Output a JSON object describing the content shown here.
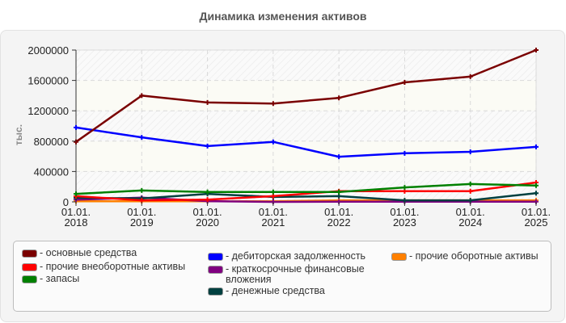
{
  "chart_data": {
    "type": "line",
    "title": "Динамика изменения активов",
    "xlabel": "",
    "ylabel": "тыс.",
    "ylim": [
      0,
      2000000
    ],
    "yticks": [
      0,
      400000,
      800000,
      1200000,
      1600000,
      2000000
    ],
    "ytick_labels": [
      "0",
      "400000",
      "800000",
      "1200000",
      "1600000",
      "2000000"
    ],
    "grid": true,
    "legend_position": "bottom",
    "categories": [
      "01.01.\n2018",
      "01.01.\n2019",
      "01.01.\n2020",
      "01.01.\n2021",
      "01.01.\n2022",
      "01.01.\n2023",
      "01.01.\n2024",
      "01.01.\n2025"
    ],
    "series": [
      {
        "name": "основные средства",
        "color": "#7a0000",
        "values": [
          790000,
          1400000,
          1310000,
          1295000,
          1370000,
          1575000,
          1650000,
          2000000
        ]
      },
      {
        "name": "прочие внеоборотные активы",
        "color": "#ff0000",
        "values": [
          75000,
          20000,
          30000,
          75000,
          140000,
          140000,
          140000,
          255000
        ]
      },
      {
        "name": "запасы",
        "color": "#008000",
        "values": [
          105000,
          150000,
          130000,
          130000,
          130000,
          190000,
          235000,
          215000
        ]
      },
      {
        "name": "дебиторская задолженность",
        "color": "#0000ff",
        "values": [
          980000,
          850000,
          735000,
          790000,
          595000,
          640000,
          660000,
          725000
        ]
      },
      {
        "name": "краткосрочные финансовые вложения",
        "color": "#800080",
        "values": [
          30000,
          55000,
          10000,
          0,
          3000,
          3000,
          3000,
          3000
        ]
      },
      {
        "name": "денежные средства",
        "color": "#004040",
        "values": [
          55000,
          45000,
          105000,
          65000,
          75000,
          20000,
          20000,
          115000
        ]
      },
      {
        "name": "прочие оборотные активы",
        "color": "#ff8000",
        "values": [
          8000,
          8000,
          8000,
          8000,
          20000,
          20000,
          20000,
          20000
        ]
      }
    ]
  },
  "legend": {
    "items": [
      {
        "label": "- основные средства",
        "color": "#7a0000"
      },
      {
        "label": "- прочие внеоборотные активы",
        "color": "#ff0000"
      },
      {
        "label": "- запасы",
        "color": "#008000"
      },
      {
        "label": "- дебиторская задолженность",
        "color": "#0000ff"
      },
      {
        "label": "- краткосрочные финансовые\nвложения",
        "color": "#800080"
      },
      {
        "label": "- денежные средства",
        "color": "#004040"
      },
      {
        "label": "- прочие оборотные активы",
        "color": "#ff8000"
      }
    ]
  }
}
